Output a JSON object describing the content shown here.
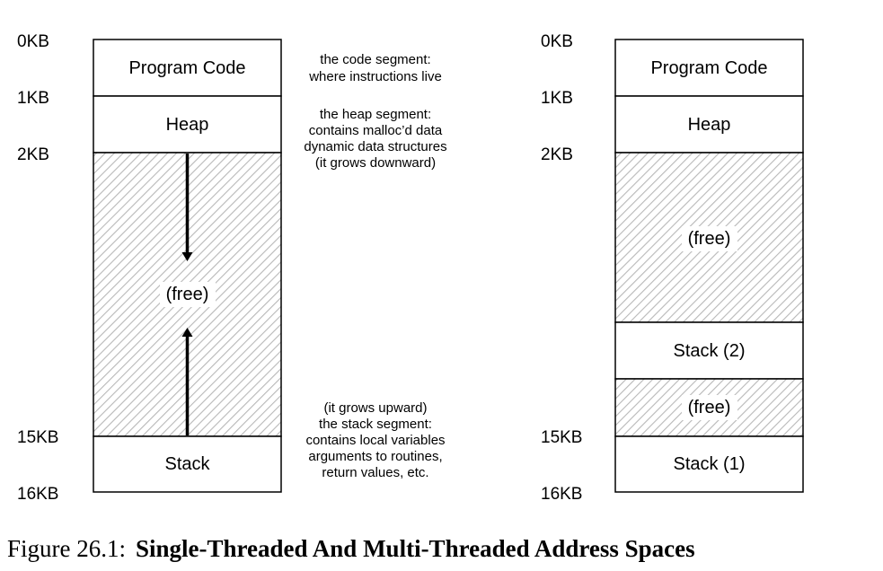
{
  "left_diagram": {
    "address_labels": [
      "0KB",
      "1KB",
      "2KB",
      "15KB",
      "16KB"
    ],
    "segments": {
      "code": "Program Code",
      "heap": "Heap",
      "free": "(free)",
      "stack": "Stack"
    },
    "annotations": {
      "code": [
        "the code segment:",
        "where instructions live"
      ],
      "heap": [
        "the heap segment:",
        "contains malloc’d data",
        "dynamic data structures",
        "(it grows downward)"
      ],
      "stack": [
        "(it grows upward)",
        "the stack segment:",
        "contains local variables",
        "arguments to routines,",
        "return values, etc."
      ]
    }
  },
  "right_diagram": {
    "address_labels": [
      "0KB",
      "1KB",
      "2KB",
      "15KB",
      "16KB"
    ],
    "segments": {
      "code": "Program Code",
      "heap": "Heap",
      "free_upper": "(free)",
      "stack2": "Stack (2)",
      "free_lower": "(free)",
      "stack1": "Stack (1)"
    }
  },
  "caption": {
    "number": "Figure 26.1:",
    "title": "Single-Threaded And Multi-Threaded Address Spaces"
  }
}
